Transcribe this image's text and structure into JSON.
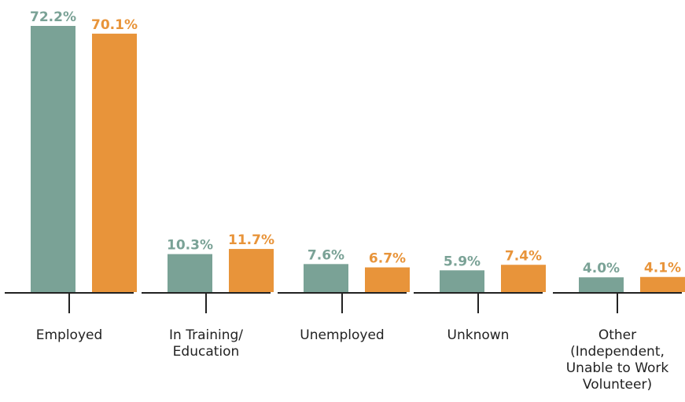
{
  "colors": {
    "series_a": "#7aa296",
    "series_b": "#e8943a",
    "axis": "#222222",
    "text": "#222222"
  },
  "chart_data": {
    "type": "bar",
    "title": "",
    "xlabel": "",
    "ylabel": "",
    "ylim": [
      0,
      72.2
    ],
    "grid": false,
    "legend": "none",
    "categories": [
      [
        "Employed"
      ],
      [
        "In Training/",
        "Education"
      ],
      [
        "Unemployed"
      ],
      [
        "Unknown"
      ],
      [
        "Other",
        "(Independent,",
        "Unable to Work",
        "Volunteer)"
      ]
    ],
    "series": [
      {
        "values": [
          72.2,
          10.3,
          7.6,
          5.9,
          4.0
        ],
        "labels": [
          "72.2%",
          "10.3%",
          "7.6%",
          "5.9%",
          "4.0%"
        ]
      },
      {
        "values": [
          70.1,
          11.7,
          6.7,
          7.4,
          4.1
        ],
        "labels": [
          "70.1%",
          "11.7%",
          "6.7%",
          "7.4%",
          "4.1%"
        ]
      }
    ]
  }
}
